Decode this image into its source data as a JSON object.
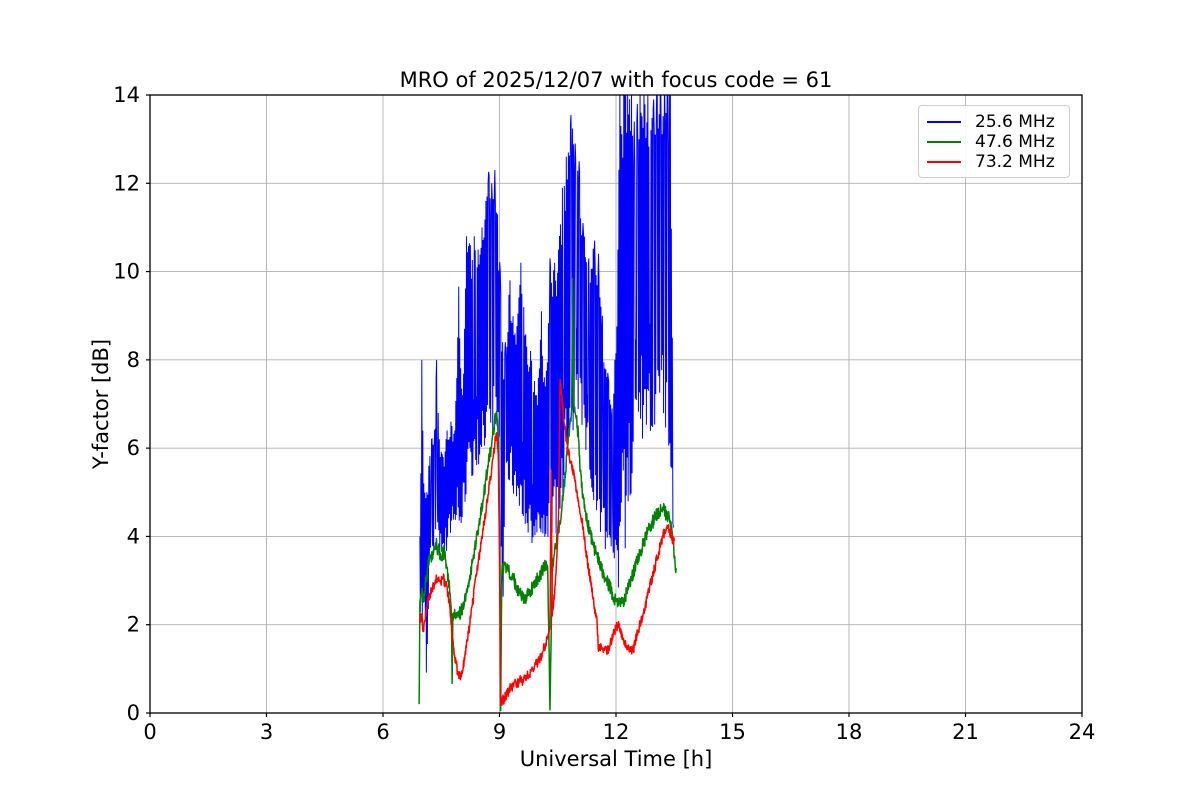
{
  "accent_colors": {
    "frame": "#000000",
    "grid": "#b0b0b0",
    "background": "#ffffff"
  },
  "chart_data": {
    "type": "line",
    "title": "MRO of 2025/12/07 with focus code = 61",
    "xlabel": "Universal Time [h]",
    "ylabel": "Y-factor [dB]",
    "xlim": [
      0,
      24
    ],
    "ylim": [
      0,
      14
    ],
    "xticks": [
      0,
      3,
      6,
      9,
      12,
      15,
      18,
      21,
      24
    ],
    "yticks": [
      0,
      2,
      4,
      6,
      8,
      10,
      12,
      14
    ],
    "grid": true,
    "legend_position": "upper right",
    "x_units": "hours UT",
    "data_time_span_hours": [
      6.95,
      13.56
    ],
    "series": [
      {
        "name": "25.6 MHz",
        "color": "#0000ff",
        "style": "noisy-band",
        "description": "very noisy trace; values given as [hour, min_dB, max_dB] envelope; max 14.3 means clipped above axis top",
        "band_envelope": [
          [
            6.95,
            1.8,
            4.0
          ],
          [
            7.0,
            1.8,
            8.0
          ],
          [
            7.05,
            2.2,
            5.2
          ],
          [
            7.13,
            0.4,
            5.0
          ],
          [
            7.18,
            3.0,
            5.6
          ],
          [
            7.25,
            3.6,
            6.2
          ],
          [
            7.33,
            3.8,
            6.4
          ],
          [
            7.38,
            4.0,
            8.0
          ],
          [
            7.45,
            3.6,
            6.2
          ],
          [
            7.55,
            3.4,
            5.8
          ],
          [
            7.65,
            3.7,
            6.4
          ],
          [
            7.75,
            4.0,
            6.6
          ],
          [
            7.85,
            4.2,
            6.4
          ],
          [
            7.95,
            3.9,
            9.66
          ],
          [
            8.05,
            4.4,
            7.2
          ],
          [
            8.15,
            4.7,
            10.8
          ],
          [
            8.25,
            5.0,
            10.6
          ],
          [
            8.35,
            5.2,
            10.8
          ],
          [
            8.45,
            5.4,
            10.5
          ],
          [
            8.55,
            5.6,
            11.0
          ],
          [
            8.65,
            5.8,
            11.6
          ],
          [
            8.72,
            6.0,
            12.26
          ],
          [
            8.8,
            6.0,
            12.0
          ],
          [
            8.88,
            6.2,
            12.3
          ],
          [
            8.95,
            5.6,
            11.3
          ],
          [
            9.02,
            4.8,
            10.0
          ],
          [
            9.08,
            0.2,
            8.4
          ],
          [
            9.15,
            5.0,
            8.4
          ],
          [
            9.27,
            5.2,
            9.8
          ],
          [
            9.4,
            4.8,
            8.6
          ],
          [
            9.55,
            4.4,
            10.2
          ],
          [
            9.7,
            4.1,
            8.3
          ],
          [
            9.8,
            3.8,
            8.2
          ],
          [
            9.95,
            3.6,
            7.2
          ],
          [
            10.08,
            3.4,
            9.1
          ],
          [
            10.18,
            3.3,
            7.4
          ],
          [
            10.3,
            3.5,
            10.3
          ],
          [
            10.42,
            3.8,
            10.2
          ],
          [
            10.52,
            4.2,
            10.5
          ],
          [
            10.62,
            4.6,
            11.9
          ],
          [
            10.72,
            5.4,
            12.6
          ],
          [
            10.84,
            6.2,
            13.55
          ],
          [
            10.95,
            6.5,
            12.9
          ],
          [
            11.05,
            6.6,
            12.5
          ],
          [
            11.15,
            6.2,
            11.1
          ],
          [
            11.3,
            5.2,
            10.3
          ],
          [
            11.45,
            4.5,
            10.7
          ],
          [
            11.55,
            4.2,
            10.4
          ],
          [
            11.65,
            3.9,
            9.0
          ],
          [
            11.8,
            3.4,
            7.6
          ],
          [
            11.9,
            3.1,
            6.9
          ],
          [
            11.97,
            2.9,
            8.0
          ],
          [
            12.05,
            2.8,
            10.5
          ],
          [
            12.1,
            2.9,
            14.3
          ],
          [
            12.2,
            3.3,
            14.3
          ],
          [
            12.3,
            3.8,
            14.3
          ],
          [
            12.4,
            5.0,
            14.3
          ],
          [
            12.47,
            5.6,
            13.4
          ],
          [
            12.55,
            5.8,
            13.8
          ],
          [
            12.62,
            6.0,
            14.3
          ],
          [
            12.72,
            6.1,
            14.3
          ],
          [
            12.82,
            6.2,
            14.3
          ],
          [
            12.9,
            6.3,
            13.2
          ],
          [
            12.97,
            6.5,
            13.9
          ],
          [
            13.05,
            6.6,
            14.3
          ],
          [
            13.15,
            6.4,
            14.3
          ],
          [
            13.25,
            6.0,
            14.3
          ],
          [
            13.33,
            5.2,
            14.3
          ],
          [
            13.4,
            4.4,
            14.0
          ],
          [
            13.45,
            4.1,
            8.5
          ],
          [
            13.48,
            4.2,
            5.0
          ]
        ]
      },
      {
        "name": "47.6 MHz",
        "color": "#008000",
        "style": "noisy-line",
        "noise_band_db": 0.16,
        "points": [
          [
            6.93,
            0.2
          ],
          [
            6.95,
            2.5
          ],
          [
            7.0,
            2.75
          ],
          [
            7.05,
            2.6
          ],
          [
            7.1,
            3.0
          ],
          [
            7.15,
            3.3
          ],
          [
            7.2,
            3.6
          ],
          [
            7.28,
            3.5
          ],
          [
            7.35,
            3.85
          ],
          [
            7.42,
            3.7
          ],
          [
            7.5,
            3.55
          ],
          [
            7.58,
            3.65
          ],
          [
            7.65,
            3.3
          ],
          [
            7.72,
            2.7
          ],
          [
            7.76,
            2.3
          ],
          [
            7.78,
            0.67
          ],
          [
            7.8,
            2.25
          ],
          [
            7.88,
            2.2
          ],
          [
            7.95,
            2.2
          ],
          [
            8.03,
            2.35
          ],
          [
            8.1,
            2.55
          ],
          [
            8.2,
            2.95
          ],
          [
            8.3,
            3.4
          ],
          [
            8.4,
            3.9
          ],
          [
            8.5,
            4.4
          ],
          [
            8.6,
            5.0
          ],
          [
            8.7,
            5.6
          ],
          [
            8.8,
            6.1
          ],
          [
            8.87,
            6.55
          ],
          [
            8.92,
            6.8
          ],
          [
            8.97,
            6.3
          ],
          [
            9.01,
            4.0
          ],
          [
            9.03,
            0.05
          ],
          [
            9.06,
            3.2
          ],
          [
            9.15,
            3.35
          ],
          [
            9.25,
            3.2
          ],
          [
            9.35,
            3.05
          ],
          [
            9.45,
            2.85
          ],
          [
            9.55,
            2.65
          ],
          [
            9.65,
            2.6
          ],
          [
            9.75,
            2.7
          ],
          [
            9.85,
            2.85
          ],
          [
            9.95,
            3.0
          ],
          [
            10.05,
            3.15
          ],
          [
            10.15,
            3.3
          ],
          [
            10.24,
            3.3
          ],
          [
            10.3,
            0.07
          ],
          [
            10.36,
            3.3
          ],
          [
            10.45,
            3.8
          ],
          [
            10.55,
            4.3
          ],
          [
            10.65,
            5.0
          ],
          [
            10.75,
            6.0
          ],
          [
            10.82,
            6.6
          ],
          [
            10.86,
            6.9
          ],
          [
            10.88,
            9.84
          ],
          [
            10.91,
            7.0
          ],
          [
            10.97,
            6.7
          ],
          [
            11.03,
            6.3
          ],
          [
            11.08,
            5.5
          ],
          [
            11.13,
            5.0
          ],
          [
            11.22,
            4.55
          ],
          [
            11.32,
            4.1
          ],
          [
            11.42,
            3.8
          ],
          [
            11.52,
            3.55
          ],
          [
            11.62,
            3.3
          ],
          [
            11.75,
            3.0
          ],
          [
            11.87,
            2.8
          ],
          [
            11.97,
            2.55
          ],
          [
            12.07,
            2.45
          ],
          [
            12.17,
            2.5
          ],
          [
            12.27,
            2.7
          ],
          [
            12.4,
            3.05
          ],
          [
            12.52,
            3.4
          ],
          [
            12.65,
            3.7
          ],
          [
            12.77,
            4.0
          ],
          [
            12.9,
            4.25
          ],
          [
            13.02,
            4.45
          ],
          [
            13.12,
            4.55
          ],
          [
            13.22,
            4.6
          ],
          [
            13.32,
            4.45
          ],
          [
            13.4,
            4.35
          ],
          [
            13.46,
            3.9
          ],
          [
            13.52,
            3.4
          ],
          [
            13.56,
            3.25
          ]
        ]
      },
      {
        "name": "73.2 MHz",
        "color": "#ff0000",
        "style": "noisy-line",
        "noise_band_db": 0.12,
        "points": [
          [
            6.95,
            2.1
          ],
          [
            7.0,
            2.2
          ],
          [
            7.03,
            1.85
          ],
          [
            7.08,
            2.1
          ],
          [
            7.15,
            2.5
          ],
          [
            7.25,
            2.8
          ],
          [
            7.33,
            2.95
          ],
          [
            7.4,
            3.05
          ],
          [
            7.48,
            2.95
          ],
          [
            7.55,
            3.05
          ],
          [
            7.62,
            2.9
          ],
          [
            7.7,
            2.55
          ],
          [
            7.78,
            1.8
          ],
          [
            7.85,
            1.25
          ],
          [
            7.92,
            0.95
          ],
          [
            7.97,
            0.82
          ],
          [
            8.03,
            0.95
          ],
          [
            8.1,
            1.2
          ],
          [
            8.2,
            1.8
          ],
          [
            8.3,
            2.45
          ],
          [
            8.4,
            3.1
          ],
          [
            8.5,
            3.7
          ],
          [
            8.6,
            4.3
          ],
          [
            8.7,
            4.9
          ],
          [
            8.8,
            5.55
          ],
          [
            8.88,
            6.1
          ],
          [
            8.93,
            6.35
          ],
          [
            8.97,
            5.8
          ],
          [
            9.0,
            3.5
          ],
          [
            9.03,
            0.2
          ],
          [
            9.1,
            0.3
          ],
          [
            9.2,
            0.45
          ],
          [
            9.3,
            0.58
          ],
          [
            9.42,
            0.68
          ],
          [
            9.52,
            0.72
          ],
          [
            9.62,
            0.75
          ],
          [
            9.73,
            0.85
          ],
          [
            9.86,
            1.0
          ],
          [
            9.99,
            1.15
          ],
          [
            10.12,
            1.4
          ],
          [
            10.25,
            1.7
          ],
          [
            10.3,
            2.0
          ],
          [
            10.33,
            5.5
          ],
          [
            10.36,
            2.2
          ],
          [
            10.42,
            2.7
          ],
          [
            10.48,
            3.6
          ],
          [
            10.52,
            4.5
          ],
          [
            10.56,
            7.55
          ],
          [
            10.6,
            7.2
          ],
          [
            10.66,
            6.6
          ],
          [
            10.74,
            6.1
          ],
          [
            10.82,
            5.7
          ],
          [
            10.9,
            5.45
          ],
          [
            10.98,
            5.0
          ],
          [
            11.06,
            4.65
          ],
          [
            11.15,
            4.2
          ],
          [
            11.25,
            3.5
          ],
          [
            11.35,
            3.0
          ],
          [
            11.43,
            2.45
          ],
          [
            11.5,
            2.2
          ],
          [
            11.55,
            1.4
          ],
          [
            11.62,
            1.5
          ],
          [
            11.7,
            1.42
          ],
          [
            11.78,
            1.4
          ],
          [
            11.85,
            1.55
          ],
          [
            11.93,
            1.8
          ],
          [
            12.0,
            1.95
          ],
          [
            12.05,
            2.0
          ],
          [
            12.12,
            1.8
          ],
          [
            12.2,
            1.65
          ],
          [
            12.3,
            1.5
          ],
          [
            12.38,
            1.4
          ],
          [
            12.45,
            1.45
          ],
          [
            12.52,
            1.7
          ],
          [
            12.6,
            1.95
          ],
          [
            12.7,
            2.25
          ],
          [
            12.8,
            2.6
          ],
          [
            12.9,
            2.95
          ],
          [
            13.0,
            3.3
          ],
          [
            13.1,
            3.65
          ],
          [
            13.2,
            4.0
          ],
          [
            13.3,
            4.2
          ],
          [
            13.38,
            4.15
          ],
          [
            13.44,
            3.95
          ],
          [
            13.5,
            3.9
          ]
        ]
      }
    ]
  }
}
